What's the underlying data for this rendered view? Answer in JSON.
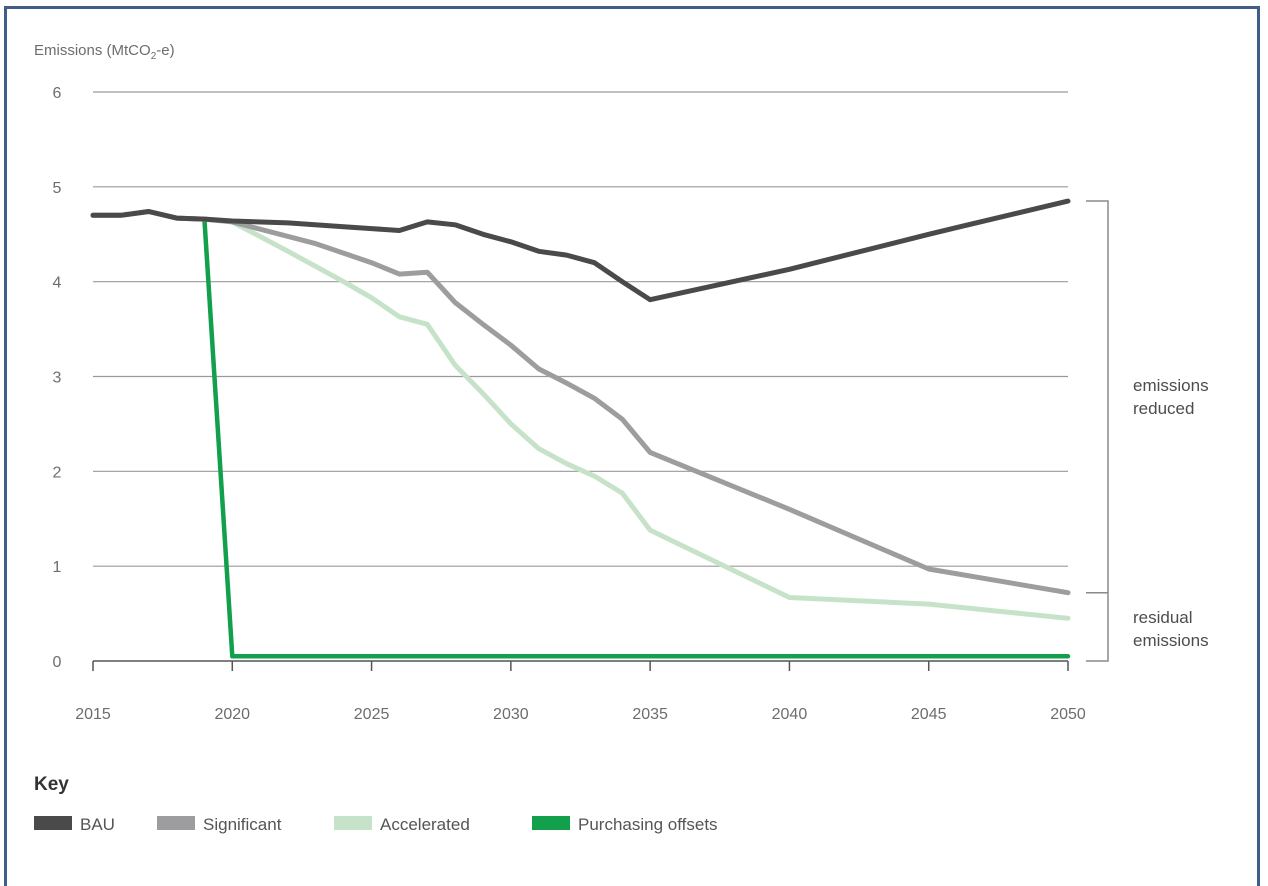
{
  "chart_data": {
    "type": "line",
    "ylabel_prefix": "Emissions (MtCO",
    "ylabel_sub": "2",
    "ylabel_suffix": "-e)",
    "xlim": [
      2015,
      2050
    ],
    "ylim": [
      0,
      6
    ],
    "x_ticks": [
      2015,
      2020,
      2025,
      2030,
      2035,
      2040,
      2045,
      2050
    ],
    "y_ticks": [
      0,
      1,
      2,
      3,
      4,
      5,
      6
    ],
    "grid": true,
    "legend_title": "Key",
    "legend_placement": "bottom-left",
    "series": [
      {
        "name": "BAU",
        "color": "#4a4a4a",
        "x": [
          2015,
          2016,
          2017,
          2018,
          2019,
          2020,
          2022,
          2024,
          2025,
          2026,
          2027,
          2028,
          2029,
          2030,
          2031,
          2032,
          2033,
          2034,
          2035,
          2040,
          2045,
          2046,
          2050
        ],
        "values": [
          4.7,
          4.7,
          4.74,
          4.67,
          4.66,
          4.64,
          4.62,
          4.58,
          4.56,
          4.54,
          4.63,
          4.6,
          4.5,
          4.42,
          4.32,
          4.28,
          4.2,
          4.0,
          3.81,
          4.13,
          4.5,
          4.57,
          4.85
        ]
      },
      {
        "name": "Significant",
        "color": "#9d9d9f",
        "x": [
          2015,
          2016,
          2017,
          2018,
          2019,
          2020,
          2023,
          2025,
          2026,
          2027,
          2028,
          2029,
          2030,
          2031,
          2032,
          2033,
          2034,
          2035,
          2040,
          2045,
          2050
        ],
        "values": [
          4.7,
          4.7,
          4.74,
          4.67,
          4.66,
          4.63,
          4.4,
          4.2,
          4.08,
          4.1,
          3.78,
          3.55,
          3.33,
          3.08,
          2.93,
          2.77,
          2.55,
          2.2,
          1.6,
          0.97,
          0.72
        ]
      },
      {
        "name": "Accelerated",
        "color": "#c6e3c9",
        "x": [
          2015,
          2016,
          2017,
          2018,
          2019,
          2020,
          2022,
          2024,
          2025,
          2026,
          2027,
          2028,
          2029,
          2030,
          2031,
          2032,
          2033,
          2034,
          2035,
          2040,
          2045,
          2050
        ],
        "values": [
          4.7,
          4.7,
          4.74,
          4.67,
          4.66,
          4.63,
          4.32,
          4.0,
          3.83,
          3.63,
          3.55,
          3.12,
          2.82,
          2.5,
          2.24,
          2.08,
          1.95,
          1.77,
          1.38,
          0.67,
          0.6,
          0.45
        ]
      },
      {
        "name": "Purchasing offsets",
        "color": "#12a04c",
        "x": [
          2015,
          2016,
          2017,
          2018,
          2019,
          2020,
          2050
        ],
        "values": [
          4.7,
          4.7,
          4.74,
          4.67,
          4.66,
          0.05,
          0.05
        ]
      }
    ],
    "annotations": [
      {
        "text_lines": [
          "emissions",
          "reduced"
        ]
      },
      {
        "text_lines": [
          "residual",
          "emissions"
        ]
      }
    ]
  }
}
